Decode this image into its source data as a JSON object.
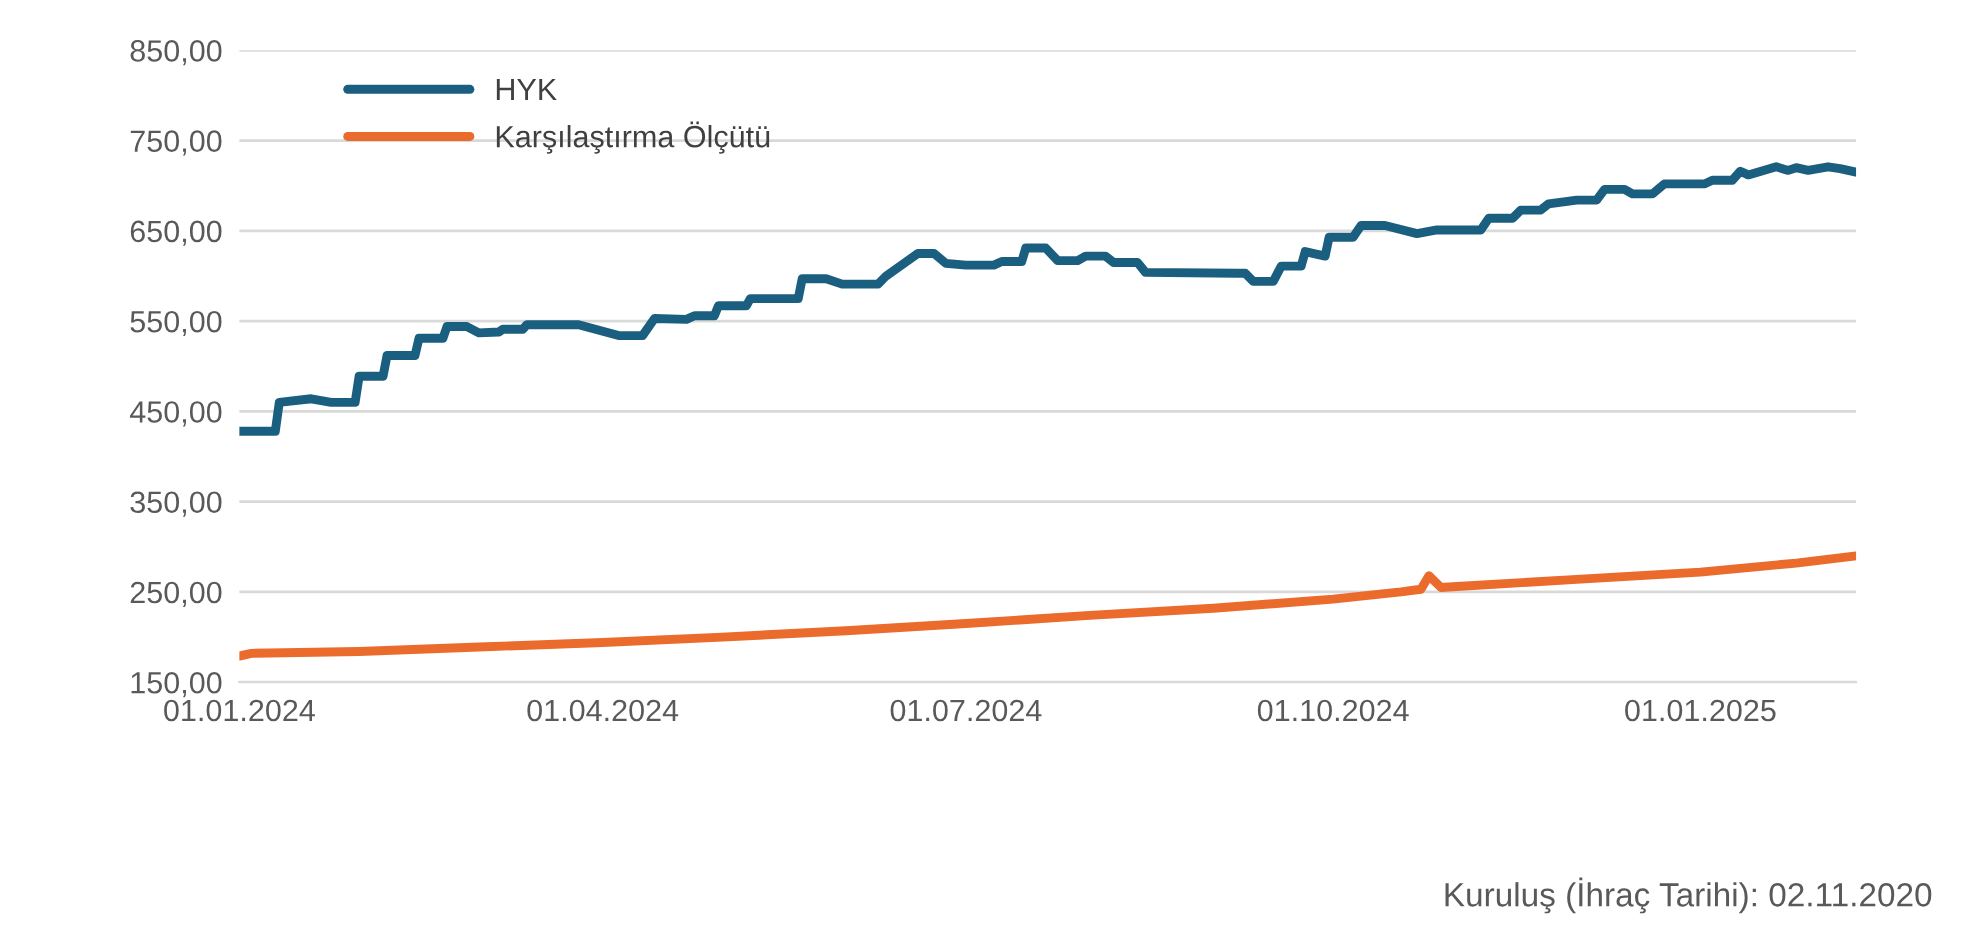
{
  "chart_data": {
    "type": "line",
    "x": [
      "2024-01-01",
      "2024-01-10",
      "2024-01-11",
      "2024-01-19",
      "2024-01-24",
      "2024-01-30",
      "2024-01-31",
      "2024-02-06",
      "2024-02-07",
      "2024-02-14",
      "2024-02-15",
      "2024-02-21",
      "2024-02-22",
      "2024-02-27",
      "2024-03-01",
      "2024-03-06",
      "2024-03-07",
      "2024-03-12",
      "2024-03-13",
      "2024-03-26",
      "2024-04-05",
      "2024-04-11",
      "2024-04-14",
      "2024-04-22",
      "2024-04-24",
      "2024-04-29",
      "2024-04-30",
      "2024-05-07",
      "2024-05-08",
      "2024-05-20",
      "2024-05-21",
      "2024-05-27",
      "2024-05-31",
      "2024-06-09",
      "2024-06-11",
      "2024-06-19",
      "2024-06-23",
      "2024-06-26",
      "2024-07-01",
      "2024-07-08",
      "2024-07-10",
      "2024-07-15",
      "2024-07-16",
      "2024-07-21",
      "2024-07-24",
      "2024-07-29",
      "2024-07-31",
      "2024-08-05",
      "2024-08-07",
      "2024-08-13",
      "2024-08-15",
      "2024-09-07",
      "2024-09-09",
      "2024-09-11",
      "2024-09-16",
      "2024-09-18",
      "2024-09-23",
      "2024-09-24",
      "2024-09-29",
      "2024-09-30",
      "2024-10-06",
      "2024-10-08",
      "2024-10-14",
      "2024-10-22",
      "2024-10-27",
      "2024-11-07",
      "2024-11-09",
      "2024-11-15",
      "2024-11-17",
      "2024-11-22",
      "2024-11-24",
      "2024-12-01",
      "2024-12-06",
      "2024-12-08",
      "2024-12-13",
      "2024-12-15",
      "2024-12-20",
      "2024-12-23",
      "2025-01-02",
      "2025-01-04",
      "2025-01-09",
      "2025-01-11",
      "2025-01-13",
      "2025-01-20",
      "2025-01-23",
      "2025-01-25",
      "2025-01-28",
      "2025-02-02",
      "2025-02-05",
      "2025-02-09"
    ],
    "series": [
      {
        "name": "HYK",
        "color": "#1b5f80",
        "values": [
          428,
          428,
          460,
          464,
          460,
          460,
          489,
          489,
          512,
          512,
          531,
          531,
          544,
          544,
          537,
          538,
          541,
          541,
          546,
          546,
          534,
          534,
          553,
          552,
          556,
          556,
          567,
          567,
          575,
          575,
          597,
          597,
          591,
          591,
          600,
          625,
          625,
          614,
          612,
          612,
          616,
          616,
          631,
          631,
          617,
          617,
          622,
          622,
          615,
          615,
          604,
          603,
          603,
          594,
          594,
          611,
          611,
          627,
          622,
          643,
          643,
          656,
          656,
          647,
          651,
          651,
          664,
          664,
          673,
          673,
          680,
          684,
          684,
          696,
          696,
          691,
          691,
          702,
          702,
          706,
          706,
          716,
          712,
          721,
          717,
          720,
          717,
          721,
          719,
          715
        ]
      },
      {
        "name": "Karşılaştırma Ölçütü",
        "color": "#ea6b2b",
        "x": [
          "2024-01-01",
          "2024-01-04",
          "2024-01-31",
          "2024-03-01",
          "2024-04-01",
          "2024-05-01",
          "2024-06-01",
          "2024-07-01",
          "2024-08-01",
          "2024-09-01",
          "2024-10-01",
          "2024-10-18",
          "2024-10-23",
          "2024-10-25",
          "2024-10-28",
          "2024-11-01",
          "2024-12-01",
          "2025-01-01",
          "2025-01-25",
          "2025-02-09"
        ],
        "values": [
          179,
          182,
          184,
          189,
          194,
          200,
          207,
          215,
          224,
          232,
          242,
          250,
          253,
          268,
          255,
          256,
          264,
          272,
          282,
          290
        ]
      }
    ],
    "xlim": [
      "2024-01-01",
      "2025-02-09"
    ],
    "xticks": [
      {
        "value": "2024-01-01",
        "label": "01.01.2024"
      },
      {
        "value": "2024-04-01",
        "label": "01.04.2024"
      },
      {
        "value": "2024-07-01",
        "label": "01.07.2024"
      },
      {
        "value": "2024-10-01",
        "label": "01.10.2024"
      },
      {
        "value": "2025-01-01",
        "label": "01.01.2025"
      }
    ],
    "ylim": [
      150,
      850
    ],
    "yticks": [
      {
        "value": 150,
        "label": "150,00"
      },
      {
        "value": 250,
        "label": "250,00"
      },
      {
        "value": 350,
        "label": "350,00"
      },
      {
        "value": 450,
        "label": "450,00"
      },
      {
        "value": 550,
        "label": "550,00"
      },
      {
        "value": 650,
        "label": "650,00"
      },
      {
        "value": 750,
        "label": "750,00"
      },
      {
        "value": 850,
        "label": "850,00"
      }
    ],
    "grid": "y",
    "legend": "top left",
    "marker": "none",
    "line_style": "solid",
    "annotations": [
      "Kuruluş (İhraç Tarihi): 02.11.2020"
    ]
  }
}
